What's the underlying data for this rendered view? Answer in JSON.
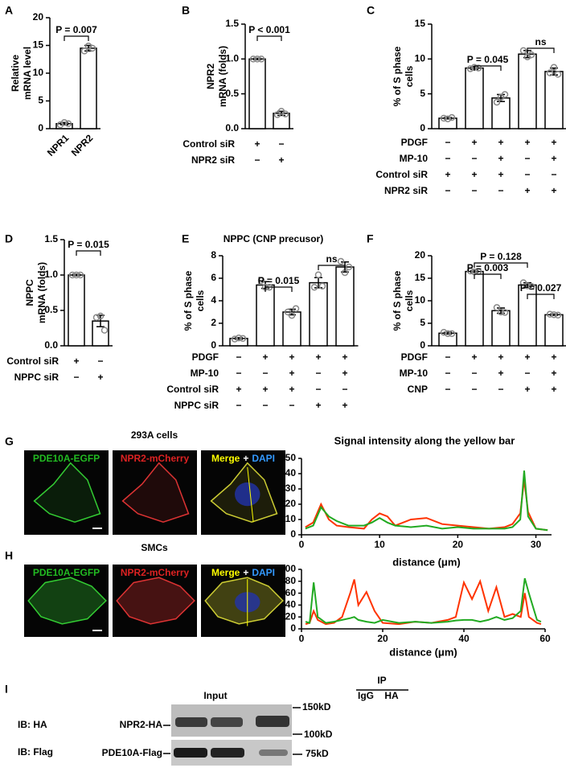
{
  "chart_data": [
    {
      "type": "bar",
      "panel": "A",
      "ylabel": [
        "Relative",
        "mRNA level"
      ],
      "categories": [
        "NPR1",
        "NPR2"
      ],
      "values": [
        0.9,
        14.5
      ],
      "errors": [
        0.2,
        0.5
      ],
      "points": [
        [
          0.7,
          1.1,
          0.9
        ],
        [
          14.0,
          14.9,
          14.5
        ]
      ],
      "color": "#ffffff",
      "point_color": "#888888",
      "ylim": [
        0,
        20
      ],
      "yticks": [
        0,
        5,
        10,
        15,
        20
      ],
      "annotations": [
        "P = 0.007"
      ]
    },
    {
      "type": "bar",
      "panel": "B",
      "ylabel": [
        "NPR2",
        "mRNA (folds)"
      ],
      "values": [
        1.0,
        0.22
      ],
      "errors": [
        0.01,
        0.03
      ],
      "points": [
        [
          1.0,
          1.0,
          1.0
        ],
        [
          0.2,
          0.25,
          0.21
        ]
      ],
      "color": "#ffffff",
      "point_color": "#888888",
      "ylim": [
        0,
        1.5
      ],
      "yticks": [
        {
          "value": 0,
          "label": "0.0"
        },
        0.5,
        {
          "value": 1,
          "label": "1.0"
        },
        1.5
      ],
      "conditions": [
        {
          "label": "Control siR",
          "marks": [
            "+",
            "−"
          ]
        },
        {
          "label": "NPR2 siR",
          "marks": [
            "−",
            "+"
          ]
        }
      ],
      "annotations": [
        "P < 0.001"
      ]
    },
    {
      "type": "bar",
      "panel": "C",
      "ylabel": [
        "% of S phase",
        "cells"
      ],
      "values": [
        1.5,
        8.7,
        4.4,
        10.7,
        8.2
      ],
      "errors": [
        0.1,
        0.2,
        0.5,
        0.5,
        0.5
      ],
      "points": [
        [
          1.5,
          1.4,
          1.6
        ],
        [
          8.6,
          8.8,
          8.7
        ],
        [
          3.8,
          4.5,
          4.9
        ],
        [
          11.2,
          10.3,
          10.6
        ],
        [
          8.0,
          8.8,
          7.8
        ]
      ],
      "color": "#ffffff",
      "point_color": "#888888",
      "ylim": [
        0,
        15
      ],
      "yticks": [
        0,
        5,
        10,
        15
      ],
      "conditions": [
        {
          "label": "PDGF",
          "marks": [
            "−",
            "+",
            "+",
            "+",
            "+"
          ]
        },
        {
          "label": "MP-10",
          "marks": [
            "−",
            "−",
            "+",
            "−",
            "+"
          ]
        },
        {
          "label": "Control siR",
          "marks": [
            "+",
            "+",
            "+",
            "−",
            "−"
          ]
        },
        {
          "label": "NPR2 siR",
          "marks": [
            "−",
            "−",
            "−",
            "+",
            "+"
          ]
        }
      ],
      "annotations": [
        "P = 0.045",
        "ns"
      ]
    },
    {
      "type": "bar",
      "panel": "D",
      "ylabel": [
        "NPPC",
        "mRNA (folds)"
      ],
      "values": [
        1.0,
        0.35
      ],
      "errors": [
        0.01,
        0.08
      ],
      "points": [
        [
          1.0,
          1.0,
          1.0
        ],
        [
          0.4,
          0.42,
          0.22
        ]
      ],
      "color": "#ffffff",
      "point_color": "#888888",
      "ylim": [
        0,
        1.5
      ],
      "yticks": [
        {
          "value": 0,
          "label": "0.0"
        },
        0.5,
        {
          "value": 1,
          "label": "1.0"
        },
        1.5
      ],
      "conditions": [
        {
          "label": "Control siR",
          "marks": [
            "+",
            "−"
          ]
        },
        {
          "label": "NPPC siR",
          "marks": [
            "−",
            "+"
          ]
        }
      ],
      "annotations": [
        "P = 0.015"
      ]
    },
    {
      "type": "bar",
      "panel": "E",
      "title": "NPPC (CNP precusor)",
      "ylabel": [
        "% of S phase",
        "cells"
      ],
      "values": [
        0.65,
        5.4,
        3.0,
        5.6,
        7.0
      ],
      "errors": [
        0.07,
        0.3,
        0.25,
        0.45,
        0.45
      ],
      "points": [
        [
          0.6,
          0.7,
          0.65
        ],
        [
          5.8,
          5.2,
          5.2
        ],
        [
          3.0,
          2.7,
          3.3
        ],
        [
          5.2,
          6.3,
          5.3
        ],
        [
          7.5,
          6.5,
          7.0
        ]
      ],
      "color": "#ffffff",
      "point_color": "#888888",
      "ylim": [
        0,
        8
      ],
      "yticks": [
        0,
        2,
        4,
        6,
        8
      ],
      "conditions": [
        {
          "label": "PDGF",
          "marks": [
            "−",
            "+",
            "+",
            "+",
            "+"
          ]
        },
        {
          "label": "MP-10",
          "marks": [
            "−",
            "−",
            "+",
            "−",
            "+"
          ]
        },
        {
          "label": "Control siR",
          "marks": [
            "+",
            "+",
            "+",
            "−",
            "−"
          ]
        },
        {
          "label": "NPPC siR",
          "marks": [
            "−",
            "−",
            "−",
            "+",
            "+"
          ]
        }
      ],
      "annotations": [
        "P = 0.015",
        "ns"
      ]
    },
    {
      "type": "bar",
      "panel": "F",
      "ylabel": [
        "% of S phase",
        "cells"
      ],
      "values": [
        2.8,
        16.5,
        7.8,
        13.5,
        6.9
      ],
      "errors": [
        0.2,
        0.2,
        0.6,
        0.5,
        0.15
      ],
      "points": [
        [
          3.0,
          2.7,
          2.7
        ],
        [
          16.6,
          16.4,
          16.5
        ],
        [
          8.5,
          7.5,
          7.4
        ],
        [
          14.0,
          13.3,
          13.2
        ],
        [
          7.0,
          6.9,
          6.8
        ]
      ],
      "color": "#ffffff",
      "point_color": "#888888",
      "ylim": [
        0,
        20
      ],
      "yticks": [
        0,
        5,
        10,
        15,
        20
      ],
      "conditions": [
        {
          "label": "PDGF",
          "marks": [
            "−",
            "+",
            "+",
            "+",
            "+"
          ]
        },
        {
          "label": "MP-10",
          "marks": [
            "−",
            "−",
            "+",
            "−",
            "+"
          ]
        },
        {
          "label": "CNP",
          "marks": [
            "−",
            "−",
            "−",
            "+",
            "+"
          ]
        }
      ],
      "annotations": [
        "P = 0.128",
        "P = 0.003",
        "P = 0.027"
      ]
    },
    {
      "type": "line",
      "title": "Signal intensity along the yellow bar",
      "xlabel": "distance (μm)",
      "x": [
        0.5,
        1.5,
        2.5,
        3.5,
        4.5,
        6,
        8,
        9,
        10,
        11,
        12,
        14,
        16,
        18,
        20,
        22,
        24,
        26,
        27,
        28,
        28.5,
        29,
        30,
        31.5
      ],
      "series": [
        {
          "color": "#ff3300",
          "values": [
            5,
            8,
            20,
            10,
            6,
            5,
            4,
            10,
            14,
            12,
            6,
            10,
            11,
            7,
            6,
            5,
            4,
            5,
            7,
            14,
            36,
            15,
            4,
            3
          ]
        },
        {
          "color": "#22aa22",
          "values": [
            4,
            6,
            18,
            12,
            9,
            6,
            6,
            8,
            11,
            8,
            6,
            5,
            6,
            4,
            5,
            4,
            4,
            4,
            5,
            10,
            42,
            12,
            4,
            3
          ]
        }
      ],
      "xlim": [
        0,
        32
      ],
      "xticks": [
        0,
        10,
        20,
        30
      ],
      "ylim": [
        0,
        50
      ],
      "yticks": [
        0,
        10,
        20,
        30,
        40,
        50
      ]
    },
    {
      "type": "line",
      "xlabel": "distance (μm)",
      "x": [
        1,
        2,
        3,
        4,
        6,
        8,
        10,
        12,
        13,
        14,
        16,
        18,
        20,
        24,
        28,
        32,
        36,
        38,
        40,
        42,
        44,
        46,
        48,
        50,
        52,
        54,
        55,
        56,
        58,
        59
      ],
      "series": [
        {
          "color": "#ff3300",
          "values": [
            8,
            10,
            30,
            15,
            8,
            10,
            20,
            60,
            83,
            40,
            62,
            30,
            10,
            8,
            12,
            10,
            15,
            20,
            78,
            50,
            80,
            30,
            70,
            20,
            25,
            20,
            60,
            20,
            10,
            8
          ]
        },
        {
          "color": "#22aa22",
          "values": [
            12,
            10,
            78,
            20,
            10,
            12,
            15,
            18,
            20,
            15,
            12,
            10,
            15,
            10,
            12,
            10,
            12,
            14,
            15,
            15,
            12,
            15,
            20,
            15,
            18,
            30,
            85,
            60,
            15,
            12
          ]
        }
      ],
      "xlim": [
        0,
        60
      ],
      "xticks": [
        0,
        20,
        40,
        60
      ],
      "ylim": [
        0,
        100
      ],
      "yticks": [
        0,
        20,
        40,
        60,
        80,
        100
      ]
    }
  ],
  "images": [
    {
      "panel": "G",
      "label": "293A cells",
      "channels": [
        {
          "parts": [
            {
              "text": "PDE10A-EGFP",
              "color": "#22bb22"
            }
          ]
        },
        {
          "parts": [
            {
              "text": "NPR2-mCherry",
              "color": "#dd2222"
            }
          ]
        },
        {
          "parts": [
            {
              "text": "Merge",
              "color": "#ffff00"
            },
            {
              "text": "+",
              "color": "#ffffff"
            },
            {
              "text": "DAPI",
              "color": "#3399ff"
            }
          ]
        }
      ]
    },
    {
      "panel": "H",
      "label": "SMCs",
      "channels": [
        {
          "parts": [
            {
              "text": "PDE10A-EGFP",
              "color": "#22bb22"
            }
          ]
        },
        {
          "parts": [
            {
              "text": "NPR2-mCherry",
              "color": "#dd2222"
            }
          ]
        },
        {
          "parts": [
            {
              "text": "Merge",
              "color": "#ffff00"
            },
            {
              "text": "+",
              "color": "#ffffff"
            },
            {
              "text": "DAPI",
              "color": "#3399ff"
            }
          ]
        }
      ]
    }
  ],
  "blot": {
    "panel": "I",
    "ip": "IP",
    "lanes": [
      "Input",
      "IgG",
      "HA"
    ],
    "rows": [
      {
        "ib": "IB: HA",
        "protein": "NPR2-HA"
      },
      {
        "ib": "IB: Flag",
        "protein": "PDE10A-Flag"
      }
    ],
    "markers": [
      "150kD",
      "100kD",
      "75kD"
    ]
  }
}
